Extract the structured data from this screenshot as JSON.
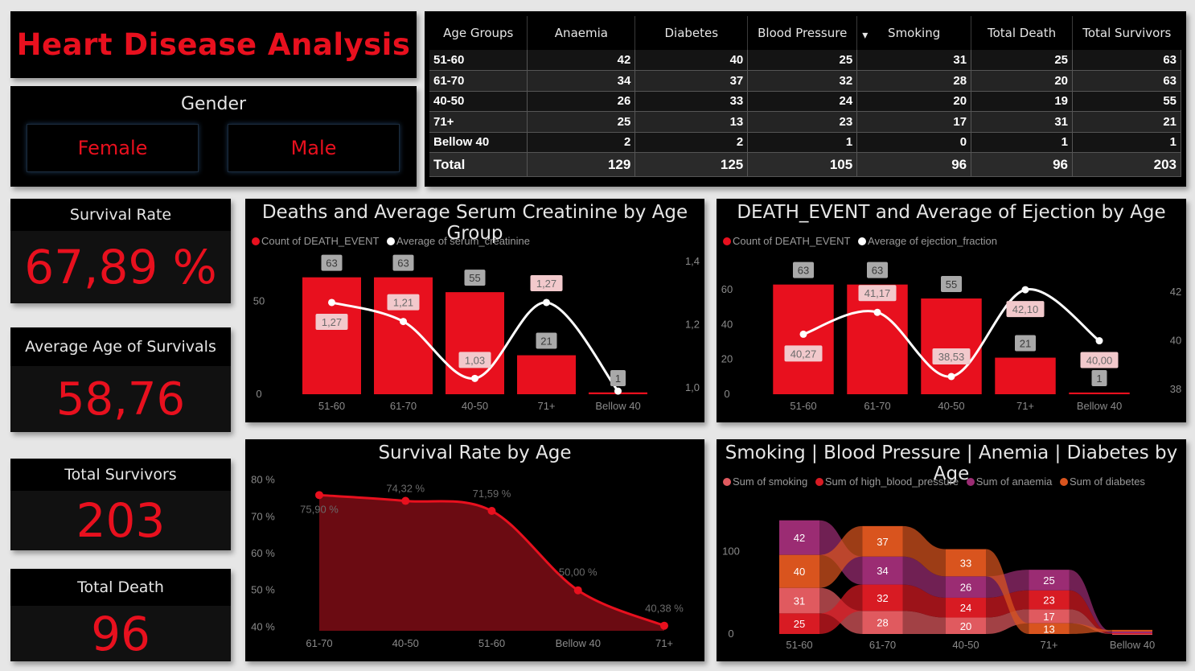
{
  "title": "Heart Disease Analysis",
  "gender": {
    "title": "Gender",
    "options": [
      "Female",
      "Male"
    ]
  },
  "table": {
    "headers": [
      "Age Groups",
      "Anaemia",
      "Diabetes",
      "Blood Pressure",
      "Smoking",
      "Total Death",
      "Total Survivors"
    ],
    "sort_indicator": "▾",
    "rows": [
      [
        "51-60",
        "42",
        "40",
        "25",
        "31",
        "25",
        "63"
      ],
      [
        "61-70",
        "34",
        "37",
        "32",
        "28",
        "20",
        "63"
      ],
      [
        "40-50",
        "26",
        "33",
        "24",
        "20",
        "19",
        "55"
      ],
      [
        "71+",
        "25",
        "13",
        "23",
        "17",
        "31",
        "21"
      ],
      [
        "Bellow 40",
        "2",
        "2",
        "1",
        "0",
        "1",
        "1"
      ]
    ],
    "total": [
      "Total",
      "129",
      "125",
      "105",
      "96",
      "96",
      "203"
    ]
  },
  "kpis": {
    "survival_rate": {
      "label": "Survival Rate",
      "value": "67,89 %"
    },
    "avg_age": {
      "label": "Average Age of Survivals",
      "value": "58,76"
    },
    "total_survivors": {
      "label": "Total Survivors",
      "value": "203"
    },
    "total_death": {
      "label": "Total Death",
      "value": "96"
    }
  },
  "chart_data": [
    {
      "type": "bar",
      "title": "Deaths and Average Serum Creatinine by Age Group",
      "legend": [
        "Count of DEATH_EVENT",
        "Average of serum_creatinine"
      ],
      "categories": [
        "51-60",
        "61-70",
        "40-50",
        "71+",
        "Bellow 40"
      ],
      "series": [
        {
          "name": "Count of DEATH_EVENT",
          "type": "bar",
          "values": [
            63,
            63,
            55,
            21,
            1
          ],
          "labels": [
            "63",
            "63",
            "55",
            "21",
            "1"
          ]
        },
        {
          "name": "Average of serum_creatinine",
          "type": "line",
          "values": [
            1.27,
            1.21,
            1.03,
            1.27,
            0.99
          ],
          "labels": [
            "1,27",
            "1,21",
            "1,03",
            "1,27",
            ""
          ]
        }
      ],
      "y_left": {
        "ticks": [
          "0",
          "50"
        ],
        "ylim": [
          0,
          75
        ]
      },
      "y_right": {
        "ticks": [
          "1,0",
          "1,2",
          "1,4"
        ],
        "ylim": [
          0.98,
          1.42
        ]
      },
      "colors": {
        "bar": "#e8101e",
        "line": "#ffffff"
      }
    },
    {
      "type": "bar",
      "title": "DEATH_EVENT and Average of Ejection by Age",
      "legend": [
        "Count of DEATH_EVENT",
        "Average of ejection_fraction"
      ],
      "categories": [
        "51-60",
        "61-70",
        "40-50",
        "71+",
        "Bellow 40"
      ],
      "series": [
        {
          "name": "Count of DEATH_EVENT",
          "type": "bar",
          "values": [
            63,
            63,
            55,
            21,
            1
          ],
          "labels": [
            "63",
            "63",
            "55",
            "21",
            "1"
          ]
        },
        {
          "name": "Average of ejection_fraction",
          "type": "line",
          "values": [
            40.27,
            41.17,
            38.53,
            42.1,
            40.0
          ],
          "labels": [
            "40,27",
            "41,17",
            "38,53",
            "42,10",
            "40,00"
          ]
        }
      ],
      "y_left": {
        "ticks": [
          "0",
          "20",
          "40",
          "60"
        ],
        "ylim": [
          0,
          67
        ]
      },
      "y_right": {
        "ticks": [
          "38",
          "40",
          "42"
        ],
        "ylim": [
          37.8,
          42.6
        ]
      },
      "colors": {
        "bar": "#e8101e",
        "line": "#ffffff"
      }
    },
    {
      "type": "area",
      "title": "Survival Rate by Age",
      "categories": [
        "61-70",
        "40-50",
        "51-60",
        "Bellow 40",
        "71+"
      ],
      "values": [
        75.9,
        74.32,
        71.59,
        50.0,
        40.38
      ],
      "labels": [
        "75,90 %",
        "74,32 %",
        "71,59 %",
        "50,00 %",
        "40,38 %"
      ],
      "y_ticks": [
        "40 %",
        "50 %",
        "60 %",
        "70 %",
        "80 %"
      ],
      "ylim": [
        39,
        81
      ],
      "colors": {
        "line": "#e8101e",
        "fill": "#6b0b12"
      }
    },
    {
      "type": "area",
      "subtype": "ribbon",
      "title": "Smoking | Blood Pressure | Anemia | Diabetes by Age",
      "legend": [
        "Sum of smoking",
        "Sum of high_blood_pressure",
        "Sum of anaemia",
        "Sum of diabetes"
      ],
      "categories": [
        "51-60",
        "61-70",
        "40-50",
        "71+",
        "Bellow 40"
      ],
      "series": [
        {
          "name": "Sum of smoking",
          "values": [
            31,
            28,
            20,
            17,
            0
          ]
        },
        {
          "name": "Sum of high_blood_pressure",
          "values": [
            25,
            32,
            24,
            23,
            1
          ]
        },
        {
          "name": "Sum of anaemia",
          "values": [
            42,
            34,
            26,
            25,
            2
          ]
        },
        {
          "name": "Sum of diabetes",
          "values": [
            40,
            37,
            33,
            13,
            2
          ]
        }
      ],
      "y_ticks": [
        "0",
        "100"
      ],
      "ylim": [
        0,
        160
      ],
      "colors": {
        "smoking": "#e05a5f",
        "blood_pressure": "#d81b23",
        "anaemia": "#9b2c73",
        "diabetes": "#d9541e"
      }
    }
  ]
}
